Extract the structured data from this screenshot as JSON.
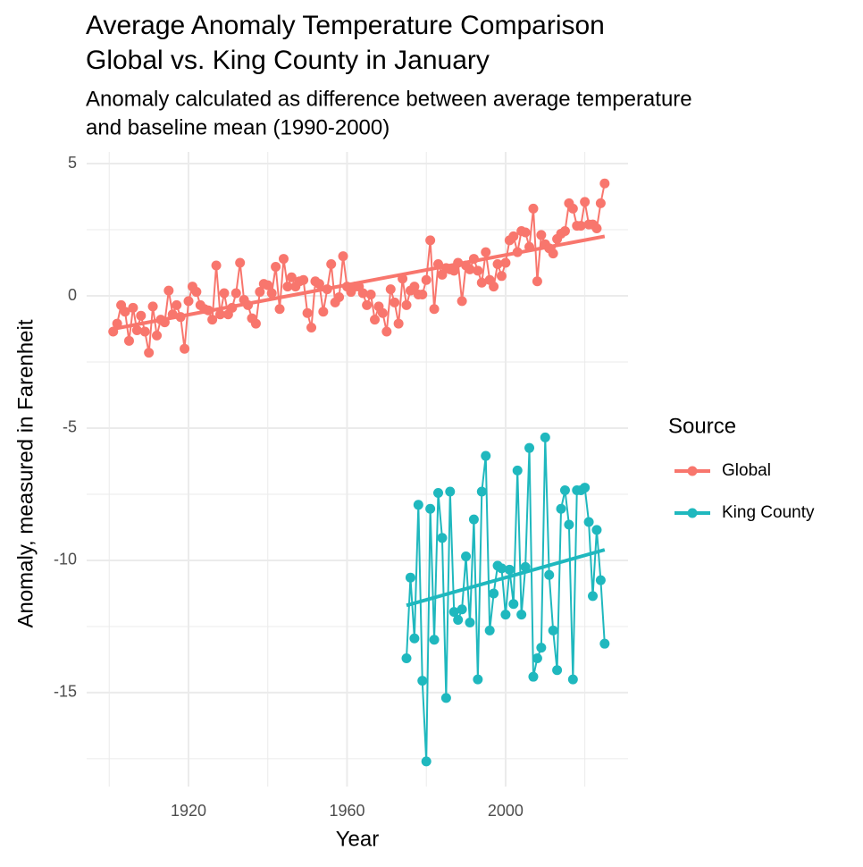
{
  "chart_data": {
    "type": "line",
    "title": [
      "Average Anomaly Temperature Comparison",
      "Global vs. King County in January"
    ],
    "subtitle": [
      "Anomaly calculated as difference between average temperature",
      "and baseline mean (1990-2000)"
    ],
    "x_label": "Year",
    "y_label": "Anomaly, measured in Farenheit",
    "legend_title": "Source",
    "legend_position": "right",
    "grid": true,
    "xlim": [
      1894.3,
      2030.9
    ],
    "ylim": [
      -18.55,
      5.44
    ],
    "xticks": [
      1920,
      1960,
      2000
    ],
    "yticks": [
      -15,
      -10,
      -5,
      0,
      5
    ],
    "xminor": [
      1900,
      1940,
      1980,
      2020
    ],
    "yminor": [
      -17.5,
      -12.5,
      -7.5,
      -2.5,
      2.5
    ],
    "series": [
      {
        "name": "Global",
        "color": "#F8766D",
        "x_start": 1901,
        "values": [
          -1.35,
          -1.05,
          -0.35,
          -0.6,
          -1.7,
          -0.45,
          -1.3,
          -0.75,
          -1.35,
          -2.15,
          -0.4,
          -1.5,
          -0.9,
          -1.0,
          0.2,
          -0.7,
          -0.35,
          -0.8,
          -2.0,
          -0.2,
          0.35,
          0.15,
          -0.35,
          -0.5,
          -0.55,
          -0.9,
          1.15,
          -0.7,
          0.1,
          -0.7,
          -0.45,
          0.1,
          1.25,
          -0.15,
          -0.35,
          -0.85,
          -1.05,
          0.15,
          0.45,
          0.4,
          0.1,
          1.1,
          -0.5,
          1.4,
          0.35,
          0.7,
          0.35,
          0.55,
          0.6,
          -0.65,
          -1.2,
          0.55,
          0.45,
          -0.6,
          0.25,
          1.2,
          -0.25,
          -0.05,
          1.5,
          0.35,
          0.15,
          0.35,
          0.35,
          0.1,
          -0.35,
          0.05,
          -0.9,
          -0.4,
          -0.65,
          -1.35,
          0.25,
          -0.25,
          -1.05,
          0.65,
          -0.35,
          0.2,
          0.35,
          0.05,
          0.05,
          0.6,
          2.1,
          -0.5,
          1.2,
          0.8,
          1.05,
          1.0,
          0.95,
          1.25,
          -0.2,
          1.15,
          1.0,
          1.4,
          0.95,
          0.5,
          1.65,
          0.6,
          0.35,
          1.2,
          0.75,
          1.25,
          2.1,
          2.25,
          1.65,
          2.45,
          2.4,
          1.85,
          3.3,
          0.55,
          2.3,
          1.95,
          1.8,
          1.6,
          2.15,
          2.35,
          2.45,
          3.5,
          3.3,
          2.65,
          2.65,
          3.55,
          2.7,
          2.7,
          2.55,
          3.5,
          4.25
        ],
        "trend": {
          "x": [
            1901,
            2025
          ],
          "values": [
            -1.25,
            2.25
          ]
        }
      },
      {
        "name": "King County",
        "color": "#1FB8BE",
        "x_start": 1975,
        "values": [
          -13.7,
          -10.65,
          -12.95,
          -7.9,
          -14.55,
          -17.6,
          -8.05,
          -13.0,
          -7.45,
          -9.15,
          -15.2,
          -7.4,
          -11.95,
          -12.25,
          -11.85,
          -9.85,
          -12.35,
          -8.45,
          -14.5,
          -7.4,
          -6.05,
          -12.65,
          -11.25,
          -10.2,
          -10.3,
          -12.05,
          -10.35,
          -11.65,
          -6.6,
          -12.05,
          -10.25,
          -5.75,
          -14.4,
          -13.7,
          -13.3,
          -5.35,
          -10.55,
          -12.65,
          -14.15,
          -8.05,
          -7.35,
          -8.65,
          -14.5,
          -7.35,
          -7.35,
          -7.25,
          -8.55,
          -11.35,
          -8.85,
          -10.75,
          -13.15
        ],
        "trend": {
          "x": [
            1975,
            2025
          ],
          "values": [
            -11.7,
            -9.6
          ]
        }
      }
    ]
  }
}
